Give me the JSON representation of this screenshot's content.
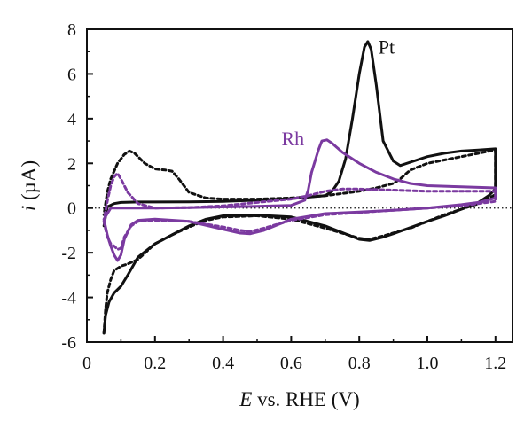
{
  "chart_data": {
    "type": "line",
    "xlabel_italic": "E",
    "xlabel_rest": " vs. RHE (V)",
    "ylabel_italic": "i",
    "ylabel_rest": " (µA)",
    "xlim": [
      0,
      1.25
    ],
    "ylim": [
      -6,
      8
    ],
    "xticks": [
      0,
      0.2,
      0.4,
      0.6,
      0.8,
      1.0,
      1.2
    ],
    "xtick_labels": [
      "0",
      "0.2",
      "0.4",
      "0.6",
      "0.8",
      "1.0",
      "1.2"
    ],
    "yticks": [
      -6,
      -4,
      -2,
      0,
      2,
      4,
      6,
      8
    ],
    "ytick_labels": [
      "-6",
      "-4",
      "-2",
      "0",
      "2",
      "4",
      "6",
      "8"
    ],
    "zero_line": "dotted",
    "grid": false,
    "colors": {
      "Pt": "#111111",
      "Rh": "#7b3aa0"
    },
    "annotations": [
      {
        "text": "Pt",
        "x": 0.88,
        "y": 6.9,
        "color": "#111111"
      },
      {
        "text": "Rh",
        "x": 0.605,
        "y": 2.8,
        "color": "#7b3aa0"
      }
    ],
    "series": [
      {
        "name": "Pt",
        "style": "solid",
        "color": "#111111",
        "points": [
          [
            0.05,
            -5.6
          ],
          [
            0.055,
            -4.8
          ],
          [
            0.065,
            -4.2
          ],
          [
            0.08,
            -3.8
          ],
          [
            0.1,
            -3.5
          ],
          [
            0.12,
            -3.0
          ],
          [
            0.15,
            -2.2
          ],
          [
            0.2,
            -1.6
          ],
          [
            0.25,
            -1.2
          ],
          [
            0.3,
            -0.8
          ],
          [
            0.35,
            -0.5
          ],
          [
            0.4,
            -0.35
          ],
          [
            0.5,
            -0.32
          ],
          [
            0.6,
            -0.4
          ],
          [
            0.7,
            -0.8
          ],
          [
            0.75,
            -1.1
          ],
          [
            0.8,
            -1.4
          ],
          [
            0.83,
            -1.45
          ],
          [
            0.87,
            -1.3
          ],
          [
            0.9,
            -1.15
          ],
          [
            1.0,
            -0.6
          ],
          [
            1.05,
            -0.35
          ],
          [
            1.1,
            -0.05
          ],
          [
            1.15,
            0.25
          ],
          [
            1.18,
            0.55
          ],
          [
            1.2,
            0.85
          ],
          [
            1.2,
            2.65
          ],
          [
            1.15,
            2.6
          ],
          [
            1.1,
            2.55
          ],
          [
            1.05,
            2.45
          ],
          [
            1.0,
            2.3
          ],
          [
            0.95,
            2.05
          ],
          [
            0.92,
            1.9
          ],
          [
            0.9,
            2.1
          ],
          [
            0.87,
            3.0
          ],
          [
            0.85,
            5.5
          ],
          [
            0.835,
            7.1
          ],
          [
            0.825,
            7.45
          ],
          [
            0.815,
            7.2
          ],
          [
            0.8,
            6.0
          ],
          [
            0.78,
            4.0
          ],
          [
            0.76,
            2.2
          ],
          [
            0.74,
            1.2
          ],
          [
            0.72,
            0.75
          ],
          [
            0.7,
            0.55
          ],
          [
            0.6,
            0.42
          ],
          [
            0.5,
            0.35
          ],
          [
            0.4,
            0.3
          ],
          [
            0.3,
            0.28
          ],
          [
            0.2,
            0.27
          ],
          [
            0.15,
            0.27
          ],
          [
            0.1,
            0.25
          ],
          [
            0.08,
            0.2
          ],
          [
            0.06,
            0.05
          ],
          [
            0.05,
            -0.8
          ]
        ]
      },
      {
        "name": "Pt dashed",
        "style": "dashed",
        "color": "#111111",
        "points": [
          [
            0.05,
            -5.6
          ],
          [
            0.055,
            -4.5
          ],
          [
            0.06,
            -3.8
          ],
          [
            0.07,
            -3.2
          ],
          [
            0.08,
            -2.8
          ],
          [
            0.1,
            -2.6
          ],
          [
            0.12,
            -2.5
          ],
          [
            0.15,
            -2.3
          ],
          [
            0.2,
            -1.6
          ],
          [
            0.25,
            -1.2
          ],
          [
            0.3,
            -0.85
          ],
          [
            0.35,
            -0.55
          ],
          [
            0.4,
            -0.4
          ],
          [
            0.5,
            -0.35
          ],
          [
            0.6,
            -0.5
          ],
          [
            0.7,
            -0.9
          ],
          [
            0.8,
            -1.35
          ],
          [
            0.83,
            -1.4
          ],
          [
            0.87,
            -1.25
          ],
          [
            0.95,
            -0.9
          ],
          [
            1.0,
            -0.6
          ],
          [
            1.05,
            -0.3
          ],
          [
            1.1,
            -0.05
          ],
          [
            1.15,
            0.2
          ],
          [
            1.2,
            0.6
          ],
          [
            1.2,
            2.6
          ],
          [
            1.1,
            2.3
          ],
          [
            1.0,
            2.0
          ],
          [
            0.95,
            1.7
          ],
          [
            0.92,
            1.3
          ],
          [
            0.9,
            1.1
          ],
          [
            0.85,
            0.9
          ],
          [
            0.8,
            0.75
          ],
          [
            0.75,
            0.65
          ],
          [
            0.7,
            0.55
          ],
          [
            0.6,
            0.45
          ],
          [
            0.5,
            0.4
          ],
          [
            0.4,
            0.4
          ],
          [
            0.35,
            0.45
          ],
          [
            0.3,
            0.7
          ],
          [
            0.27,
            1.3
          ],
          [
            0.25,
            1.65
          ],
          [
            0.23,
            1.7
          ],
          [
            0.2,
            1.75
          ],
          [
            0.17,
            2.0
          ],
          [
            0.14,
            2.45
          ],
          [
            0.125,
            2.55
          ],
          [
            0.11,
            2.4
          ],
          [
            0.09,
            2.0
          ],
          [
            0.07,
            1.3
          ],
          [
            0.06,
            0.7
          ],
          [
            0.05,
            -0.3
          ]
        ]
      },
      {
        "name": "Rh",
        "style": "solid",
        "color": "#7b3aa0",
        "points": [
          [
            0.05,
            -0.5
          ],
          [
            0.06,
            -1.2
          ],
          [
            0.07,
            -1.7
          ],
          [
            0.08,
            -2.1
          ],
          [
            0.09,
            -2.35
          ],
          [
            0.1,
            -2.1
          ],
          [
            0.11,
            -1.4
          ],
          [
            0.13,
            -0.75
          ],
          [
            0.15,
            -0.55
          ],
          [
            0.2,
            -0.5
          ],
          [
            0.3,
            -0.6
          ],
          [
            0.4,
            -0.95
          ],
          [
            0.45,
            -1.12
          ],
          [
            0.48,
            -1.15
          ],
          [
            0.52,
            -1.0
          ],
          [
            0.6,
            -0.5
          ],
          [
            0.7,
            -0.25
          ],
          [
            0.8,
            -0.18
          ],
          [
            0.9,
            -0.1
          ],
          [
            1.0,
            0.0
          ],
          [
            1.1,
            0.15
          ],
          [
            1.15,
            0.25
          ],
          [
            1.2,
            0.45
          ],
          [
            1.2,
            0.9
          ],
          [
            1.1,
            0.95
          ],
          [
            1.0,
            1.0
          ],
          [
            0.95,
            1.1
          ],
          [
            0.9,
            1.3
          ],
          [
            0.85,
            1.6
          ],
          [
            0.8,
            2.0
          ],
          [
            0.75,
            2.5
          ],
          [
            0.72,
            2.9
          ],
          [
            0.705,
            3.05
          ],
          [
            0.69,
            3.0
          ],
          [
            0.68,
            2.6
          ],
          [
            0.66,
            1.6
          ],
          [
            0.65,
            0.8
          ],
          [
            0.64,
            0.35
          ],
          [
            0.6,
            0.12
          ],
          [
            0.5,
            0.08
          ],
          [
            0.4,
            0.05
          ],
          [
            0.3,
            0.02
          ],
          [
            0.2,
            0.0
          ],
          [
            0.1,
            0.0
          ],
          [
            0.07,
            0.0
          ],
          [
            0.05,
            -0.5
          ]
        ]
      },
      {
        "name": "Rh dashed",
        "style": "dashed",
        "color": "#7b3aa0",
        "points": [
          [
            0.05,
            -0.6
          ],
          [
            0.06,
            -1.3
          ],
          [
            0.07,
            -1.6
          ],
          [
            0.08,
            -1.7
          ],
          [
            0.09,
            -1.85
          ],
          [
            0.1,
            -1.8
          ],
          [
            0.11,
            -1.3
          ],
          [
            0.13,
            -0.8
          ],
          [
            0.15,
            -0.6
          ],
          [
            0.2,
            -0.55
          ],
          [
            0.3,
            -0.6
          ],
          [
            0.4,
            -0.85
          ],
          [
            0.45,
            -1.0
          ],
          [
            0.48,
            -1.05
          ],
          [
            0.52,
            -0.9
          ],
          [
            0.6,
            -0.55
          ],
          [
            0.7,
            -0.3
          ],
          [
            0.8,
            -0.2
          ],
          [
            0.9,
            -0.1
          ],
          [
            1.0,
            0.0
          ],
          [
            1.1,
            0.1
          ],
          [
            1.2,
            0.3
          ],
          [
            1.2,
            0.75
          ],
          [
            1.1,
            0.75
          ],
          [
            1.0,
            0.75
          ],
          [
            0.9,
            0.8
          ],
          [
            0.8,
            0.85
          ],
          [
            0.75,
            0.85
          ],
          [
            0.7,
            0.75
          ],
          [
            0.65,
            0.55
          ],
          [
            0.6,
            0.4
          ],
          [
            0.5,
            0.25
          ],
          [
            0.4,
            0.1
          ],
          [
            0.3,
            0.02
          ],
          [
            0.2,
            0.0
          ],
          [
            0.15,
            0.2
          ],
          [
            0.12,
            0.7
          ],
          [
            0.1,
            1.3
          ],
          [
            0.09,
            1.55
          ],
          [
            0.08,
            1.4
          ],
          [
            0.07,
            1.0
          ],
          [
            0.06,
            0.3
          ],
          [
            0.05,
            -0.6
          ]
        ]
      }
    ]
  }
}
